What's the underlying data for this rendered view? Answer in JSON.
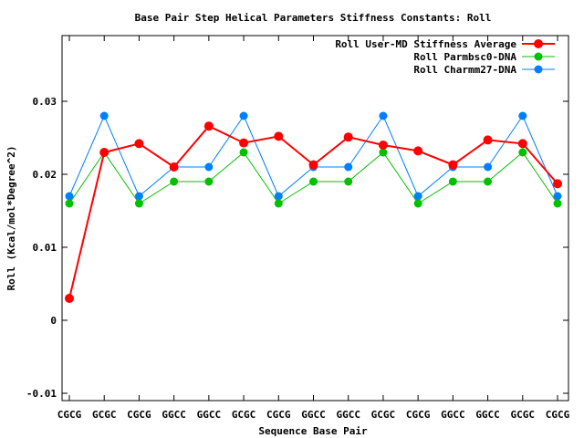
{
  "chart_data": {
    "type": "line",
    "title": "Base Pair Step Helical Parameters Stiffness Constants: Roll",
    "xlabel": "Sequence Base Pair",
    "ylabel": "Roll (Kcal/mol*Degree^2)",
    "categories": [
      "CGCG",
      "GCGC",
      "CGCG",
      "GGCC",
      "GGCC",
      "GCGC",
      "CGCG",
      "GGCC",
      "GGCC",
      "GCGC",
      "CGCG",
      "GGCC",
      "GGCC",
      "GCGC",
      "CGCG"
    ],
    "ylim": [
      -0.011,
      0.039
    ],
    "yticks": [
      -0.01,
      0,
      0.01,
      0.02,
      0.03
    ],
    "ytick_labels": [
      "-0.01",
      "0",
      "0.01",
      "0.02",
      "0.03"
    ],
    "grid": false,
    "legend_position": "top-right",
    "series": [
      {
        "name": "Roll User-MD Stiffness Average",
        "color": "#ff0000",
        "values": [
          0.003,
          0.023,
          0.0242,
          0.021,
          0.0266,
          0.0243,
          0.0252,
          0.0213,
          0.0251,
          0.024,
          0.0232,
          0.0213,
          0.0247,
          0.0242,
          0.0187
        ]
      },
      {
        "name": "Roll Parmbsc0-DNA",
        "color": "#00c000",
        "values": [
          0.016,
          0.023,
          0.016,
          0.019,
          0.019,
          0.023,
          0.016,
          0.019,
          0.019,
          0.023,
          0.016,
          0.019,
          0.019,
          0.023,
          0.016
        ]
      },
      {
        "name": "Roll Charmm27-DNA",
        "color": "#0080ff",
        "values": [
          0.017,
          0.028,
          0.017,
          0.021,
          0.021,
          0.028,
          0.017,
          0.021,
          0.021,
          0.028,
          0.017,
          0.021,
          0.021,
          0.028,
          0.017
        ]
      }
    ]
  }
}
